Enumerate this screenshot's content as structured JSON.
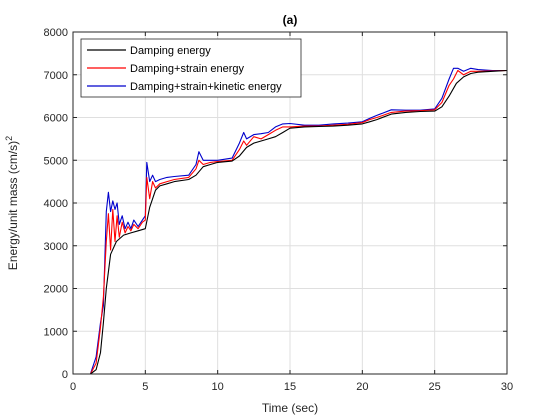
{
  "chart_data": {
    "type": "line",
    "title": "(a)",
    "xlabel": "Time (sec)",
    "ylabel_main": "Energy/unit mass (cm/s)",
    "ylabel_sup": "2",
    "xlim": [
      0,
      30
    ],
    "ylim": [
      0,
      8000
    ],
    "xticks": [
      0,
      5,
      10,
      15,
      20,
      25,
      30
    ],
    "yticks": [
      0,
      1000,
      2000,
      3000,
      4000,
      5000,
      6000,
      7000,
      8000
    ],
    "grid": true,
    "legend_position": "top-left",
    "series": [
      {
        "name": "Damping energy",
        "color": "#000000",
        "x": [
          0,
          1.2,
          1.6,
          1.9,
          2.1,
          2.3,
          2.6,
          3.0,
          3.5,
          4.0,
          4.5,
          5.0,
          5.3,
          5.7,
          6.0,
          6.5,
          7.0,
          8.0,
          8.5,
          9.0,
          9.5,
          10.0,
          11.0,
          11.5,
          12.0,
          12.5,
          13.0,
          13.5,
          14.0,
          14.5,
          15.0,
          16.0,
          17.0,
          18.0,
          19.0,
          20.0,
          20.5,
          21.0,
          22.0,
          23.0,
          24.0,
          25.0,
          25.5,
          26.0,
          26.5,
          27.0,
          27.5,
          28.0,
          29.0,
          30.0
        ],
        "y": [
          0,
          0,
          100,
          500,
          1200,
          2000,
          2800,
          3100,
          3250,
          3300,
          3350,
          3400,
          3900,
          4300,
          4400,
          4450,
          4500,
          4550,
          4650,
          4850,
          4900,
          4950,
          4980,
          5100,
          5300,
          5400,
          5450,
          5500,
          5550,
          5650,
          5750,
          5780,
          5790,
          5800,
          5820,
          5850,
          5900,
          5950,
          6080,
          6120,
          6140,
          6150,
          6250,
          6500,
          6800,
          6950,
          7030,
          7060,
          7080,
          7100
        ]
      },
      {
        "name": "Damping+strain energy",
        "color": "#ff0000",
        "x": [
          0,
          1.2,
          1.6,
          1.9,
          2.1,
          2.3,
          2.45,
          2.6,
          2.75,
          2.9,
          3.05,
          3.2,
          3.4,
          3.6,
          3.8,
          4.0,
          4.2,
          4.5,
          4.8,
          5.0,
          5.1,
          5.3,
          5.5,
          5.7,
          6.0,
          6.5,
          7.0,
          8.0,
          8.5,
          8.7,
          9.0,
          9.5,
          10.0,
          11.0,
          11.5,
          11.8,
          12.0,
          12.5,
          13.0,
          13.5,
          14.0,
          14.5,
          15.0,
          16.0,
          17.0,
          18.0,
          19.0,
          20.0,
          20.5,
          21.0,
          22.0,
          23.0,
          24.0,
          25.0,
          25.5,
          26.0,
          26.3,
          26.6,
          27.0,
          27.5,
          28.0,
          29.0,
          30.0
        ],
        "y": [
          0,
          0,
          250,
          1100,
          1800,
          3100,
          3750,
          2900,
          3850,
          3100,
          3700,
          3200,
          3550,
          3300,
          3450,
          3350,
          3500,
          3400,
          3550,
          3600,
          4600,
          4100,
          4500,
          4350,
          4450,
          4500,
          4550,
          4600,
          4800,
          5000,
          4900,
          4950,
          4970,
          5000,
          5250,
          5450,
          5350,
          5550,
          5500,
          5600,
          5700,
          5780,
          5780,
          5800,
          5800,
          5820,
          5840,
          5880,
          5950,
          6000,
          6120,
          6150,
          6160,
          6180,
          6350,
          6750,
          6900,
          7100,
          7000,
          7080,
          7080,
          7090,
          7100
        ]
      },
      {
        "name": "Damping+strain+kinetic energy",
        "color": "#0000cc",
        "x": [
          0,
          1.2,
          1.6,
          1.9,
          2.1,
          2.3,
          2.45,
          2.6,
          2.75,
          2.9,
          3.05,
          3.2,
          3.4,
          3.6,
          3.8,
          4.0,
          4.2,
          4.5,
          4.8,
          5.0,
          5.1,
          5.3,
          5.5,
          5.7,
          6.0,
          6.5,
          7.0,
          8.0,
          8.5,
          8.7,
          9.0,
          9.5,
          10.0,
          11.0,
          11.5,
          11.8,
          12.0,
          12.5,
          13.0,
          13.5,
          14.0,
          14.5,
          15.0,
          16.0,
          17.0,
          18.0,
          19.0,
          20.0,
          20.5,
          21.0,
          22.0,
          23.0,
          24.0,
          25.0,
          25.5,
          26.0,
          26.3,
          26.6,
          27.0,
          27.5,
          28.0,
          29.0,
          30.0
        ],
        "y": [
          0,
          0,
          400,
          1200,
          1600,
          3800,
          4250,
          3800,
          4050,
          3850,
          4000,
          3500,
          3700,
          3400,
          3550,
          3400,
          3600,
          3450,
          3600,
          3700,
          4950,
          4500,
          4650,
          4500,
          4550,
          4600,
          4620,
          4650,
          4900,
          5200,
          5000,
          5000,
          5000,
          5050,
          5400,
          5650,
          5500,
          5600,
          5620,
          5650,
          5780,
          5850,
          5860,
          5820,
          5820,
          5850,
          5870,
          5900,
          5980,
          6050,
          6180,
          6170,
          6170,
          6200,
          6450,
          6900,
          7150,
          7150,
          7080,
          7150,
          7120,
          7100,
          7100
        ]
      }
    ]
  }
}
